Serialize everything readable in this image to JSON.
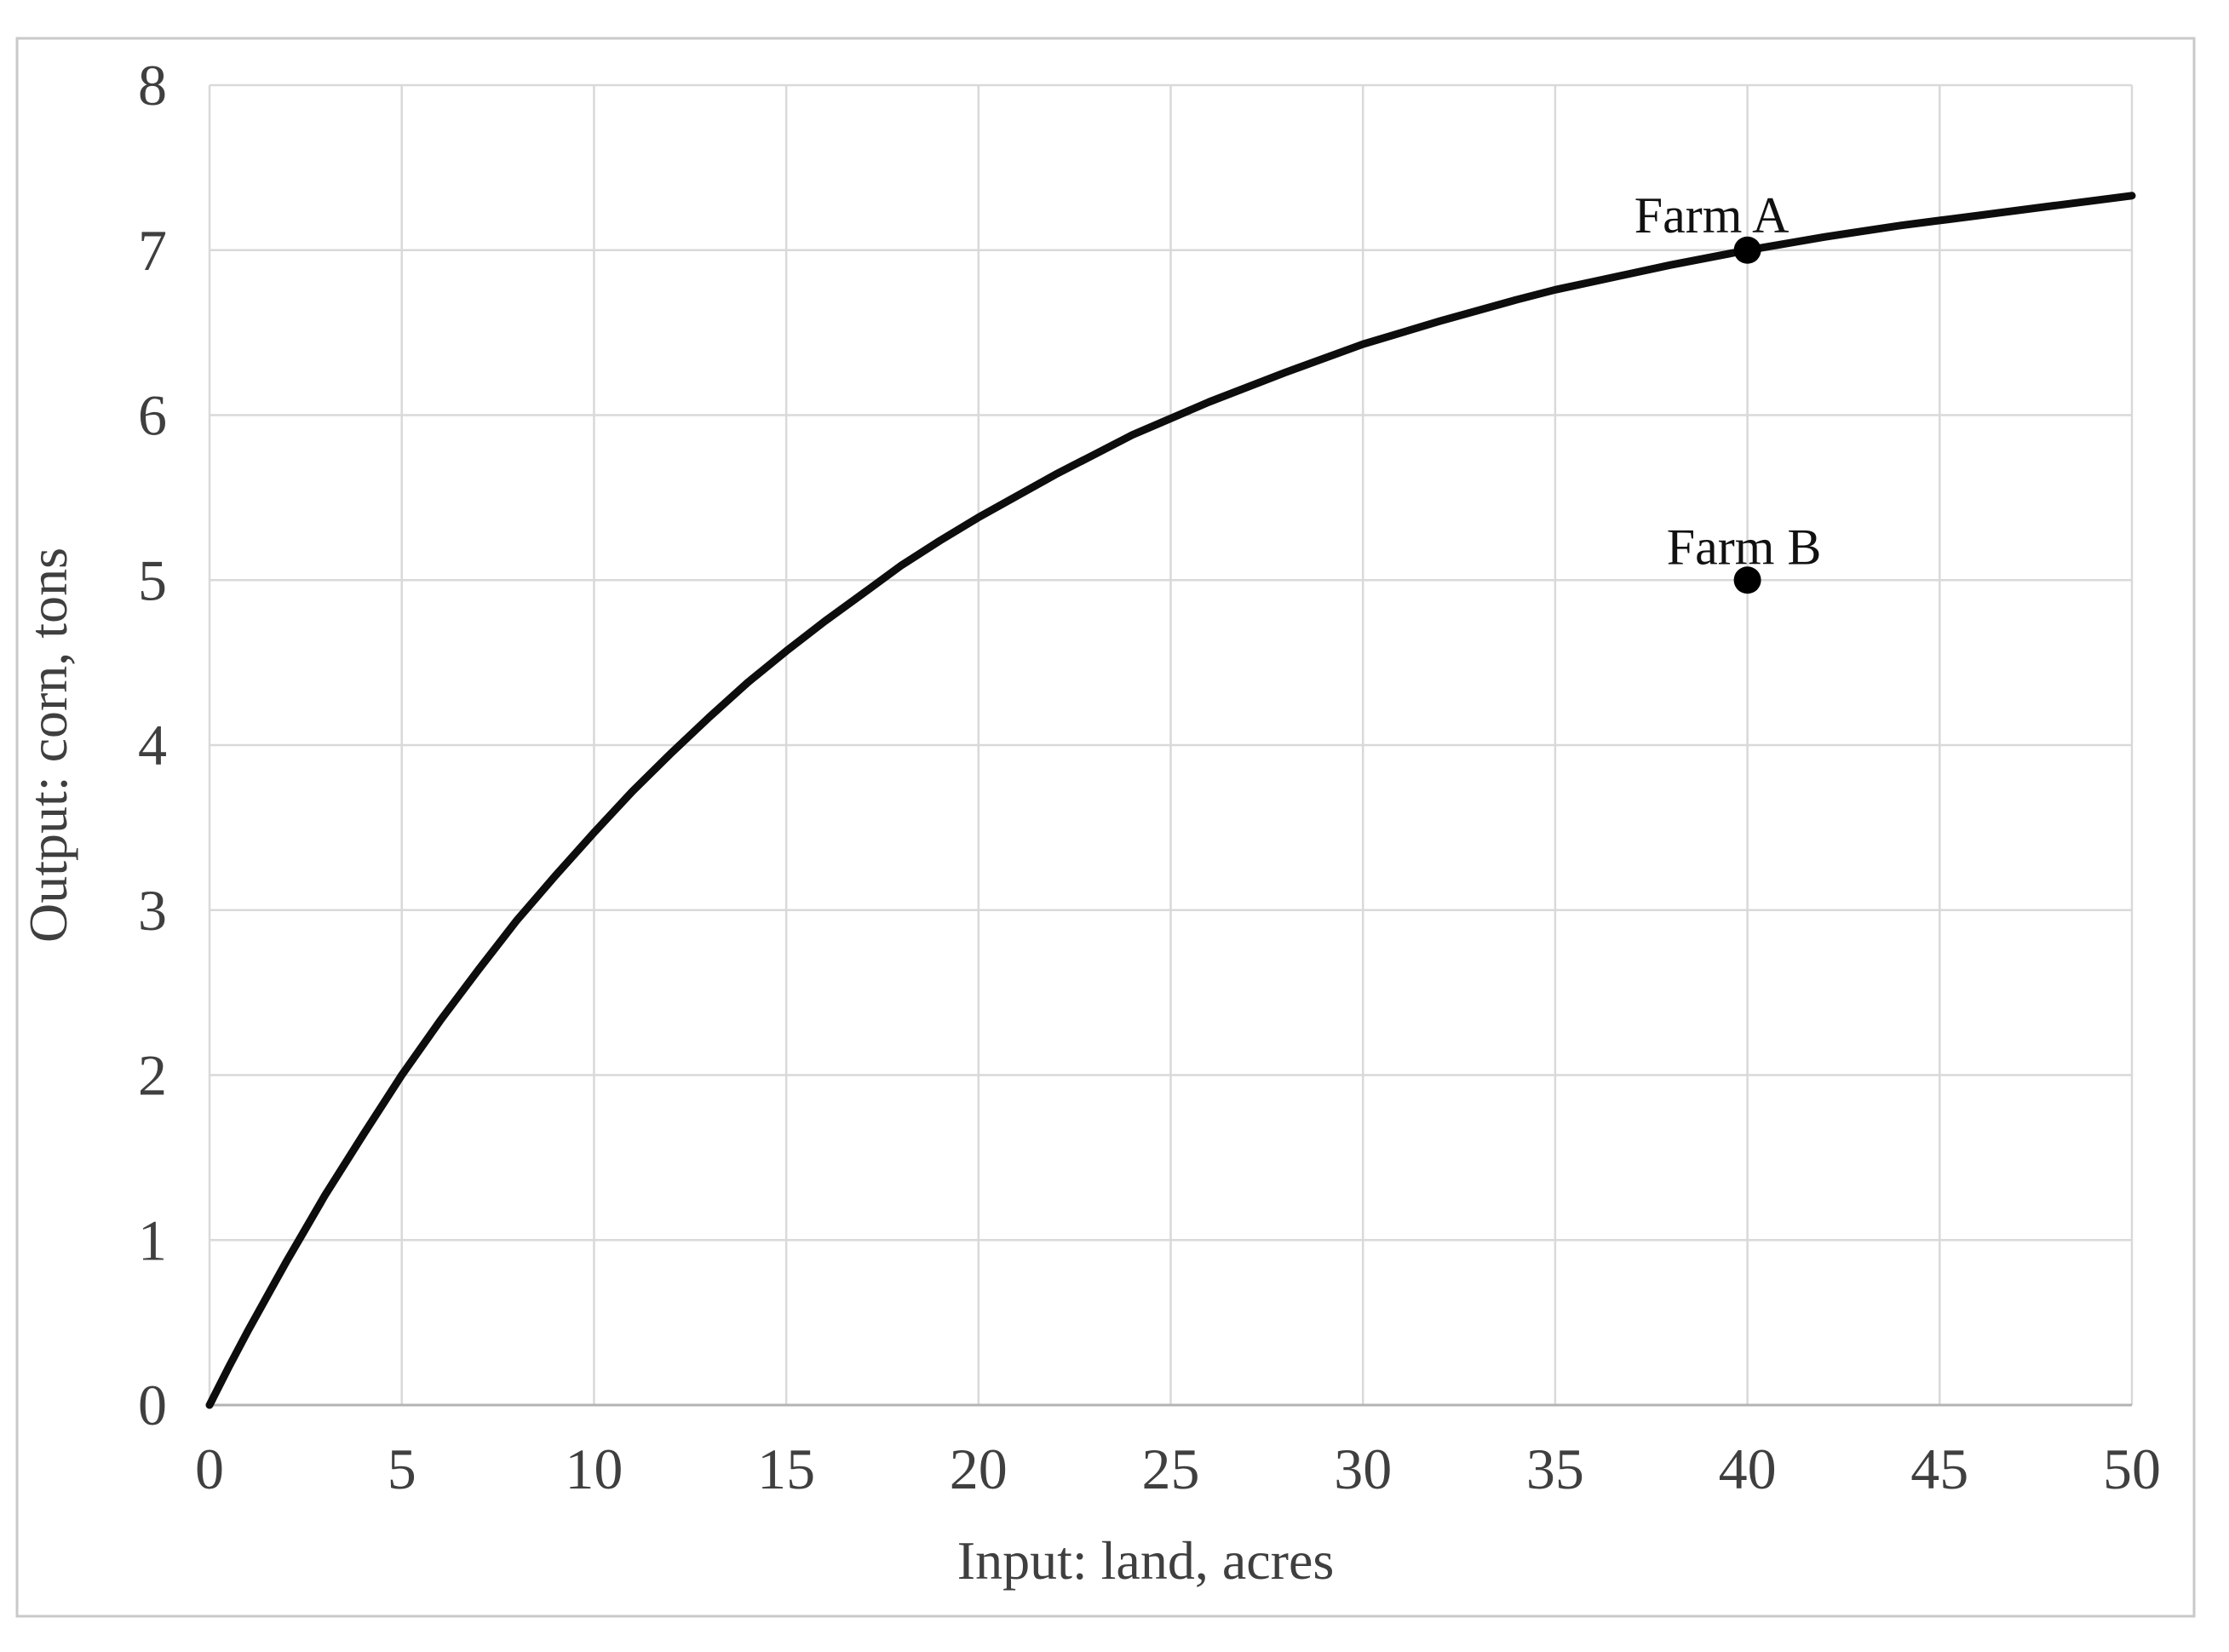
{
  "chart_data": {
    "type": "line",
    "title": "",
    "xlabel": "Input: land, acres",
    "ylabel": "Output: corn, tons",
    "xlim": [
      0,
      50
    ],
    "ylim": [
      0,
      8
    ],
    "x_ticks": [
      0,
      5,
      10,
      15,
      20,
      25,
      30,
      35,
      40,
      45,
      50
    ],
    "y_ticks": [
      0,
      1,
      2,
      3,
      4,
      5,
      6,
      7,
      8
    ],
    "grid": true,
    "legend_position": "none",
    "curve_points": [
      [
        0,
        0
      ],
      [
        0.5,
        0.23
      ],
      [
        1,
        0.45
      ],
      [
        1.5,
        0.66
      ],
      [
        2,
        0.87
      ],
      [
        2.5,
        1.07
      ],
      [
        3,
        1.27
      ],
      [
        4,
        1.64
      ],
      [
        5,
        2.0
      ],
      [
        6,
        2.33
      ],
      [
        7,
        2.64
      ],
      [
        8,
        2.94
      ],
      [
        9,
        3.21
      ],
      [
        10,
        3.47
      ],
      [
        11,
        3.72
      ],
      [
        12,
        3.95
      ],
      [
        13,
        4.17
      ],
      [
        14,
        4.38
      ],
      [
        15,
        4.57
      ],
      [
        16,
        4.75
      ],
      [
        17,
        4.92
      ],
      [
        18,
        5.09
      ],
      [
        19,
        5.24
      ],
      [
        20,
        5.38
      ],
      [
        22,
        5.64
      ],
      [
        24,
        5.88
      ],
      [
        26,
        6.08
      ],
      [
        28,
        6.26
      ],
      [
        30,
        6.43
      ],
      [
        32,
        6.57
      ],
      [
        34,
        6.7
      ],
      [
        35,
        6.76
      ],
      [
        36,
        6.81
      ],
      [
        38,
        6.91
      ],
      [
        40,
        7.0
      ],
      [
        42,
        7.08
      ],
      [
        44,
        7.15
      ],
      [
        45,
        7.18
      ],
      [
        46,
        7.21
      ],
      [
        48,
        7.27
      ],
      [
        50,
        7.33
      ]
    ],
    "annotations": [
      {
        "label": "Farm A",
        "x": 40,
        "y": 7
      },
      {
        "label": "Farm B",
        "x": 40,
        "y": 5
      }
    ],
    "colors": {
      "curve": "#0d0d0d",
      "point": "#000000",
      "grid": "#d9d9d9",
      "axis_line": "#b3b3b3",
      "tick_text": "#3f3f3f",
      "annotation_text": "#111111",
      "border": "#c9c9c9",
      "background": "#ffffff"
    }
  }
}
